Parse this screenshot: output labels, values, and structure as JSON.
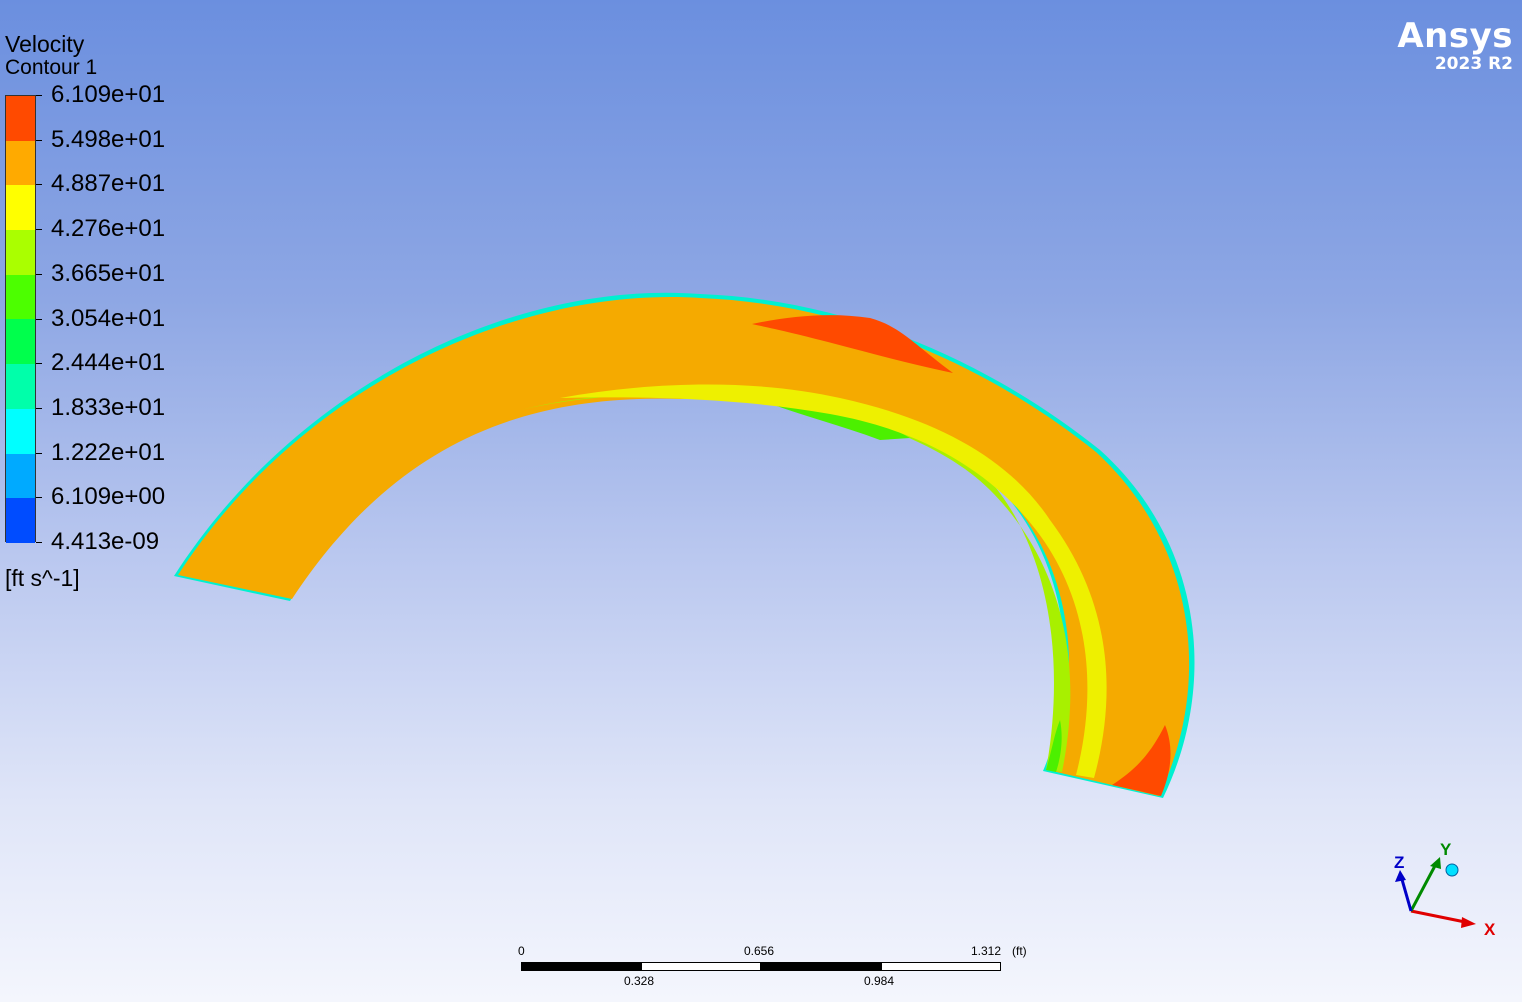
{
  "legend": {
    "title": "Velocity",
    "subtitle": "Contour 1",
    "units": "[ft s^-1]",
    "ticks": [
      "6.109e+01",
      "5.498e+01",
      "4.887e+01",
      "4.276e+01",
      "3.665e+01",
      "3.054e+01",
      "2.444e+01",
      "1.833e+01",
      "1.222e+01",
      "6.109e+00",
      "4.413e-09"
    ],
    "colors": [
      "#ff4a00",
      "#ffaa00",
      "#ffff00",
      "#aaff00",
      "#4cff00",
      "#00ff4c",
      "#00ffaa",
      "#00ffff",
      "#00aaff",
      "#004cff"
    ]
  },
  "brand": {
    "name": "Ansys",
    "version": "2023 R2"
  },
  "scale_bar": {
    "top_labels": [
      "0",
      "0.656",
      "1.312"
    ],
    "bottom_labels": [
      "0.328",
      "0.984"
    ],
    "unit": "(ft)"
  },
  "axes": {
    "x": "X",
    "y": "Y",
    "z": "Z"
  },
  "colors": {
    "band_orange": "#f5aa00",
    "band_red": "#ff4a00",
    "band_yellow": "#eef000",
    "band_green": "#a8f000",
    "band_cyan": "#00f0d0"
  }
}
